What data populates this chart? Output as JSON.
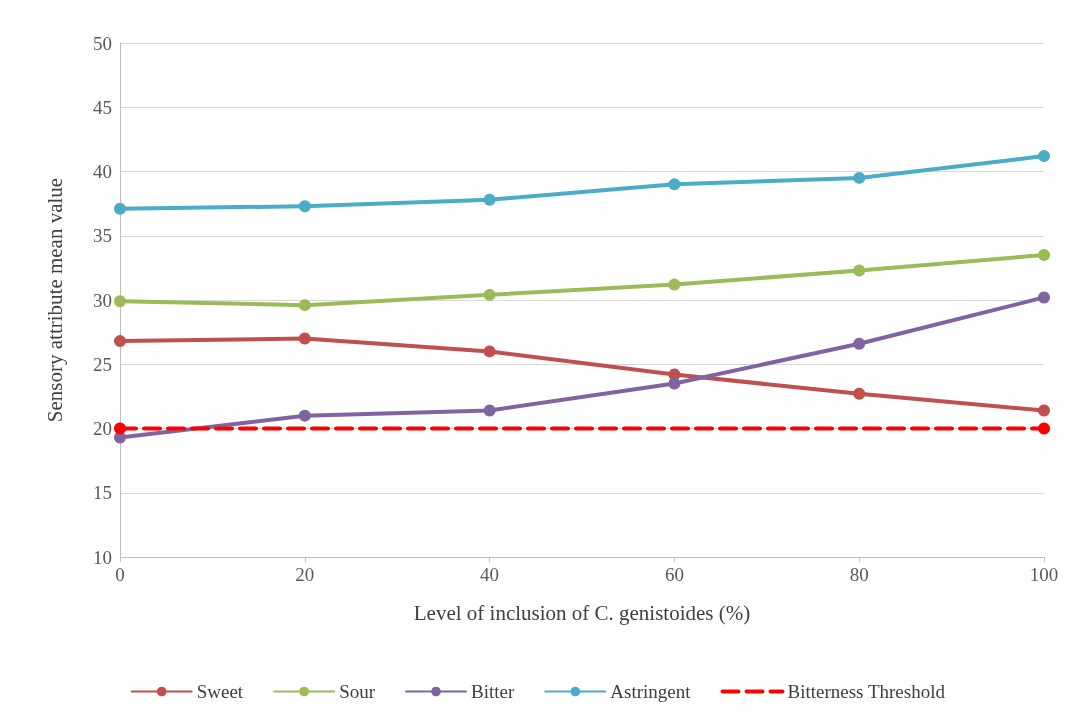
{
  "chart_data": {
    "type": "line",
    "xlabel": "Level of inclusion of C. genistoides (%)",
    "ylabel": "Sensory attribute mean value",
    "x": [
      0,
      20,
      40,
      60,
      80,
      100
    ],
    "series": [
      {
        "name": "Sweet",
        "color": "#c0504d",
        "values": [
          26.8,
          27.0,
          26.0,
          24.2,
          22.7,
          21.4
        ]
      },
      {
        "name": "Sour",
        "color": "#9bbb59",
        "values": [
          29.9,
          29.6,
          30.4,
          31.2,
          32.3,
          33.5
        ]
      },
      {
        "name": "Bitter",
        "color": "#8064a2",
        "values": [
          19.3,
          21.0,
          21.4,
          23.5,
          26.6,
          30.2
        ]
      },
      {
        "name": "Astringent",
        "color": "#4bacc6",
        "values": [
          37.1,
          37.3,
          37.8,
          39.0,
          39.5,
          41.2
        ]
      },
      {
        "name": "Bitterness Threshold",
        "color": "#ff0000",
        "x": [
          0,
          100
        ],
        "values": [
          20,
          20
        ],
        "line_style": "dashed"
      }
    ],
    "xlim": [
      0,
      100
    ],
    "xticks": [
      0,
      20,
      40,
      60,
      80,
      100
    ],
    "ylim": [
      10,
      50
    ],
    "yticks": [
      10,
      15,
      20,
      25,
      30,
      35,
      40,
      45,
      50
    ],
    "grid": "y",
    "legend": "bottom",
    "marker": "circle",
    "line_style": "solid"
  }
}
